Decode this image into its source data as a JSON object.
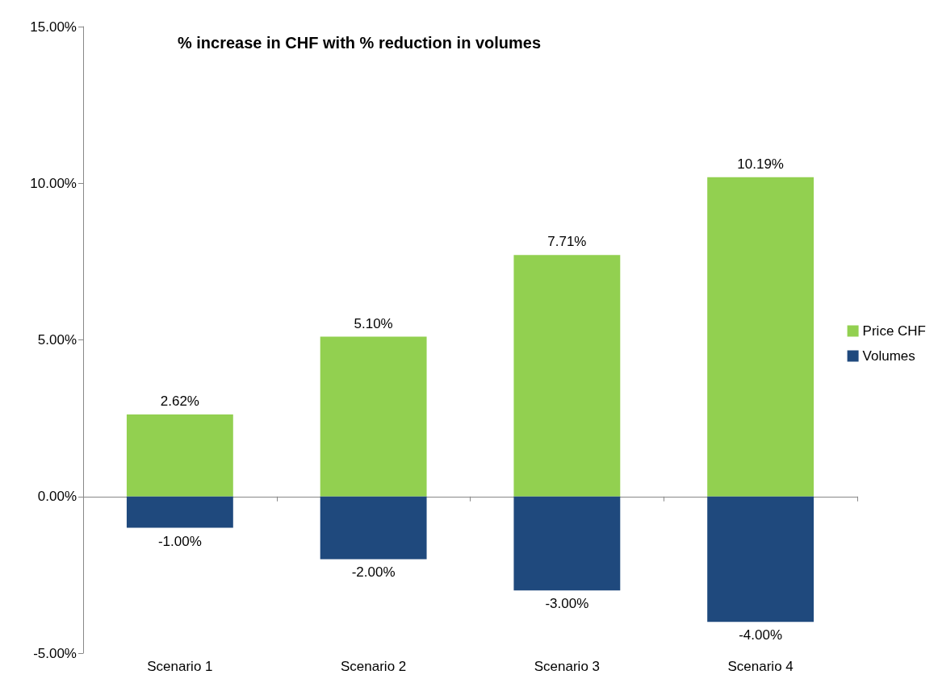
{
  "chart_data": {
    "type": "bar",
    "title": "% increase in CHF with % reduction in volumes",
    "categories": [
      "Scenario 1",
      "Scenario 2",
      "Scenario 3",
      "Scenario 4"
    ],
    "series": [
      {
        "name": "Price CHF",
        "color": "#92d050",
        "values": [
          2.62,
          5.1,
          7.71,
          10.19
        ],
        "value_labels": [
          "2.62%",
          "5.10%",
          "7.71%",
          "10.19%"
        ]
      },
      {
        "name": "Volumes",
        "color": "#1f497d",
        "values": [
          -1.0,
          -2.0,
          -3.0,
          -4.0
        ],
        "value_labels": [
          "-1.00%",
          "-2.00%",
          "-3.00%",
          "-4.00%"
        ]
      }
    ],
    "stacked": true,
    "ylim": [
      -5,
      15
    ],
    "yticks": [
      {
        "value": -5,
        "label": "-5.00%"
      },
      {
        "value": 0,
        "label": "0.00%"
      },
      {
        "value": 5,
        "label": "5.00%"
      },
      {
        "value": 10,
        "label": "10.00%"
      },
      {
        "value": 15,
        "label": "15.00%"
      }
    ],
    "legend": "right"
  }
}
